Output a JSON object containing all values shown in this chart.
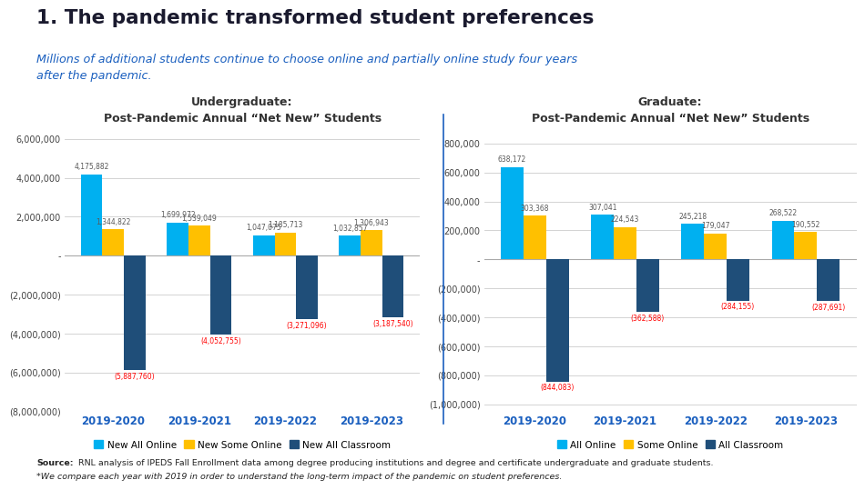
{
  "title": "1. The pandemic transformed student preferences",
  "subtitle": "Millions of additional students continue to choose online and partially online study four years\nafter the pandemic.",
  "title_color": "#1a1a2e",
  "subtitle_color": "#1a5fbf",
  "bg_color": "#ffffff",
  "source_bold": "Source:",
  "source_line1": " RNL analysis of IPEDS Fall Enrollment data among degree producing institutions and degree and certificate undergraduate and graduate students.",
  "source_line2": "*We compare each year with 2019 in order to understand the long-term impact of the pandemic on student preferences.",
  "undergrad": {
    "title": "Undergraduate:\nPost-Pandemic Annual “Net New” Students",
    "categories": [
      "2019-2020",
      "2019-2021",
      "2019-2022",
      "2019-2023"
    ],
    "online": [
      4175882,
      1699972,
      1047075,
      1032857
    ],
    "some_online": [
      1344822,
      1539049,
      1185713,
      1306943
    ],
    "classroom": [
      -5887760,
      -4052755,
      -3271096,
      -3187540
    ],
    "ylim": [
      -8000000,
      6500000
    ],
    "yticks": [
      -8000000,
      -6000000,
      -4000000,
      -2000000,
      0,
      2000000,
      4000000,
      6000000
    ],
    "ytick_labels": [
      "(8,000,000)",
      "(6,000,000)",
      "(4,000,000)",
      "(2,000,000)",
      "-",
      "2,000,000",
      "4,000,000",
      "6,000,000"
    ],
    "legend_labels": [
      "New All Online",
      "New Some Online",
      "New All Classroom"
    ]
  },
  "graduate": {
    "title": "Graduate:\nPost-Pandemic Annual “Net New” Students",
    "categories": [
      "2019-2020",
      "2019-2021",
      "2019-2022",
      "2019-2023"
    ],
    "online": [
      638172,
      307041,
      245218,
      268522
    ],
    "some_online": [
      303368,
      224543,
      179047,
      190552
    ],
    "classroom": [
      -844083,
      -362588,
      -284155,
      -287691
    ],
    "ylim": [
      -1050000,
      900000
    ],
    "yticks": [
      -1000000,
      -800000,
      -600000,
      -400000,
      -200000,
      0,
      200000,
      400000,
      600000,
      800000
    ],
    "ytick_labels": [
      "(1,000,000)",
      "(800,000)",
      "(600,000)",
      "(400,000)",
      "(200,000)",
      "-",
      "200,000",
      "400,000",
      "600,000",
      "800,000"
    ],
    "legend_labels": [
      "All Online",
      "Some Online",
      "All Classroom"
    ]
  },
  "color_online": "#00b0f0",
  "color_some_online": "#ffc000",
  "color_classroom": "#1f4e79",
  "color_neg_label": "#ff0000",
  "color_pos_label": "#595959",
  "color_xticklabel": "#1a5fbf",
  "bar_width": 0.25,
  "grid_color": "#cccccc",
  "divider_color": "#1a5fbf"
}
